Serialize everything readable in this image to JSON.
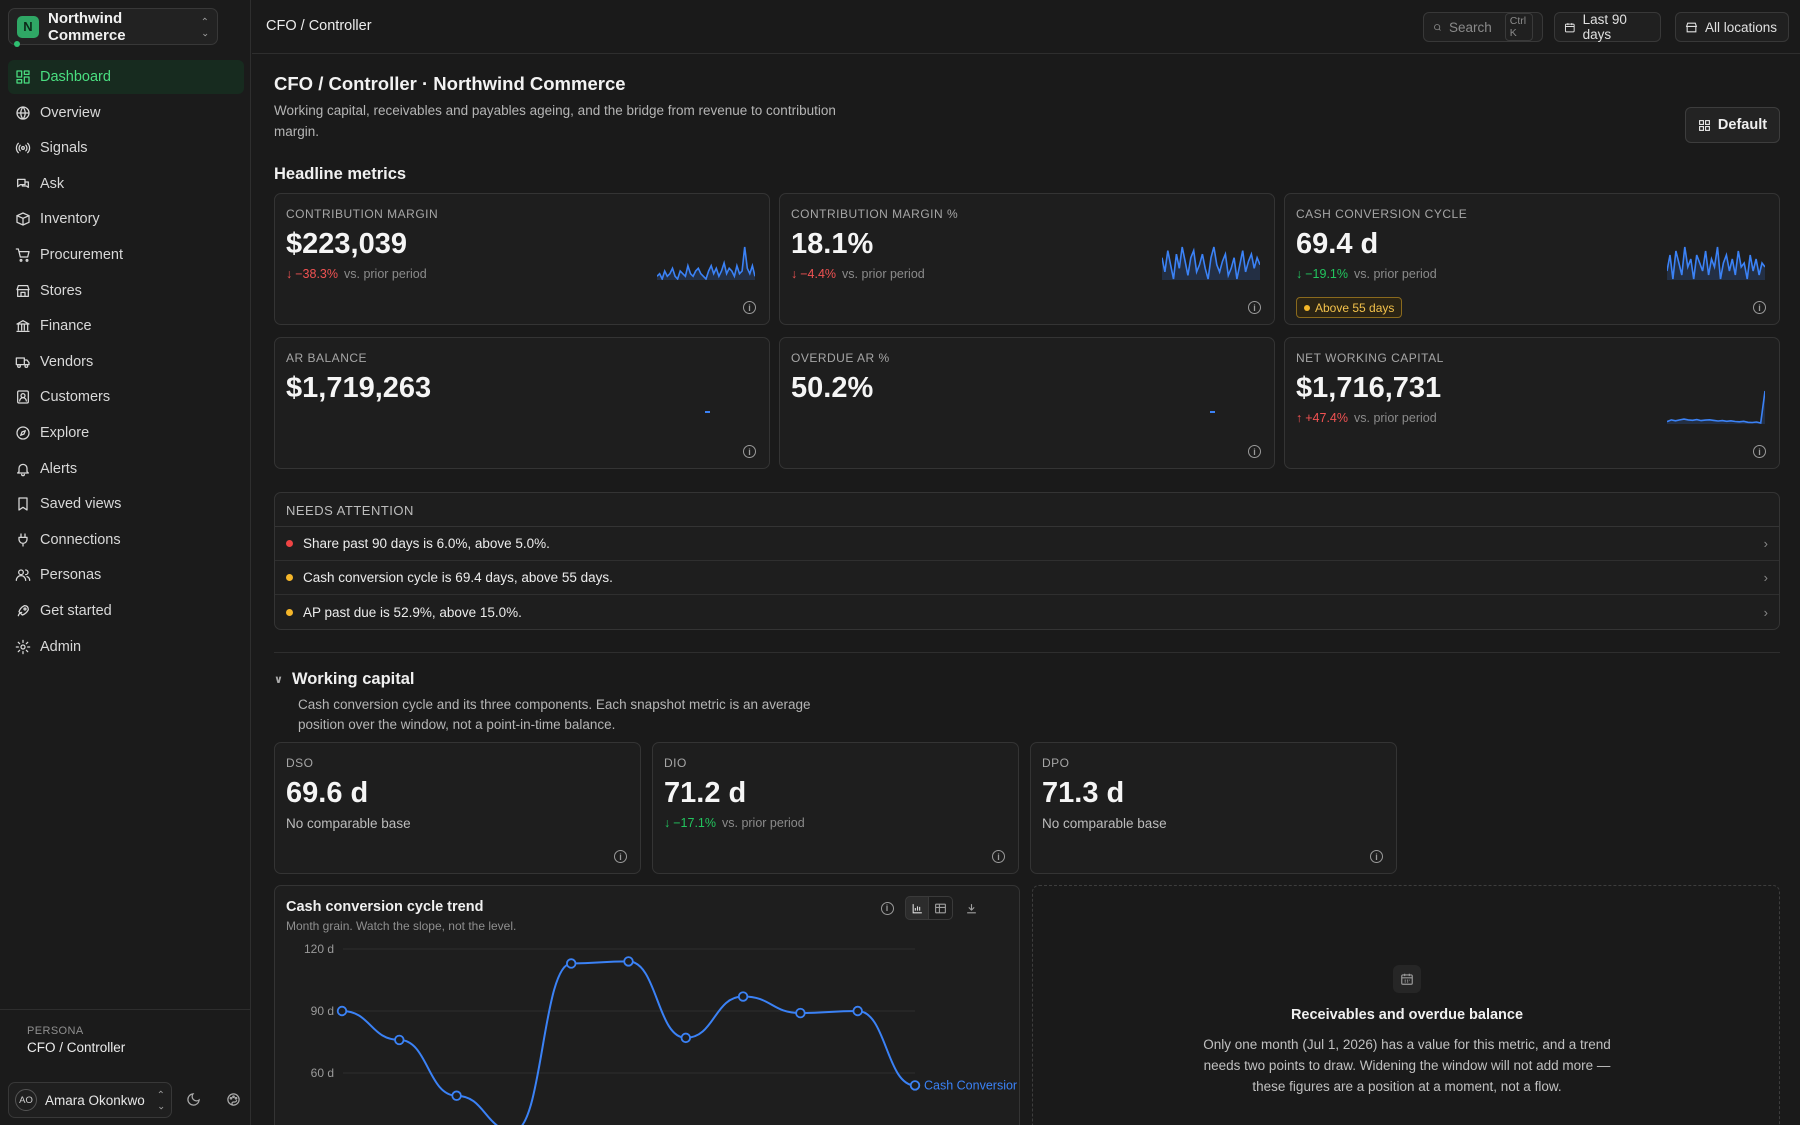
{
  "org": {
    "badge": "N",
    "name": "Northwind Commerce"
  },
  "nav": [
    {
      "label": "Dashboard",
      "icon": "dashboard-icon",
      "active": true
    },
    {
      "label": "Overview",
      "icon": "globe-icon"
    },
    {
      "label": "Signals",
      "icon": "signals-icon"
    },
    {
      "label": "Ask",
      "icon": "chat-icon"
    },
    {
      "label": "Inventory",
      "icon": "box-icon"
    },
    {
      "label": "Procurement",
      "icon": "cart-icon"
    },
    {
      "label": "Stores",
      "icon": "store-icon"
    },
    {
      "label": "Finance",
      "icon": "bank-icon"
    },
    {
      "label": "Vendors",
      "icon": "truck-icon"
    },
    {
      "label": "Customers",
      "icon": "contact-icon"
    },
    {
      "label": "Explore",
      "icon": "compass-icon"
    },
    {
      "label": "Alerts",
      "icon": "bell-icon"
    },
    {
      "label": "Saved views",
      "icon": "bookmark-icon"
    },
    {
      "label": "Connections",
      "icon": "plug-icon"
    },
    {
      "label": "Personas",
      "icon": "users-icon"
    },
    {
      "label": "Get started",
      "icon": "rocket-icon"
    },
    {
      "label": "Admin",
      "icon": "gear-icon"
    }
  ],
  "persona": {
    "label": "PERSONA",
    "name": "CFO / Controller"
  },
  "user": {
    "initials": "AO",
    "name": "Amara Okonkwo"
  },
  "topbar": {
    "breadcrumb": "CFO / Controller",
    "search_placeholder": "Search",
    "search_shortcut": "Ctrl K",
    "date_range": "Last 90 days",
    "location": "All locations"
  },
  "page": {
    "title": "CFO / Controller · Northwind Commerce",
    "description": "Working capital, receivables and payables ageing, and the bridge from revenue to contribution margin.",
    "layout_button": "Default"
  },
  "headline": {
    "title": "Headline metrics",
    "cards": [
      {
        "label": "Contribution margin",
        "value": "$223,039",
        "delta": "−38.3%",
        "delta_dir": "down",
        "delta_tone": "neg",
        "delta_suffix": "vs. prior period",
        "spark": [
          5,
          6,
          4,
          7,
          5,
          6,
          8,
          5,
          4,
          7,
          6,
          5,
          9,
          6,
          5,
          7,
          8,
          6,
          5,
          4,
          7,
          9,
          6,
          8,
          5,
          7,
          10,
          6,
          8,
          7,
          5,
          9,
          6,
          7,
          16,
          8,
          6,
          9,
          5
        ]
      },
      {
        "label": "Contribution margin %",
        "value": "18.1%",
        "delta": "−4.4%",
        "delta_dir": "down",
        "delta_tone": "neg",
        "delta_suffix": "vs. prior period",
        "spark": [
          12,
          8,
          14,
          10,
          6,
          13,
          9,
          15,
          11,
          7,
          12,
          14,
          8,
          10,
          13,
          9,
          6,
          12,
          15,
          10,
          8,
          11,
          13,
          7,
          9,
          12,
          6,
          10,
          14,
          8,
          11,
          13,
          9,
          12,
          10
        ]
      },
      {
        "label": "Cash conversion cycle",
        "value": "69.4 d",
        "delta": "−19.1%",
        "delta_dir": "down",
        "delta_tone": "pos",
        "delta_suffix": "vs. prior period",
        "badge": "Above 55 days",
        "spark": [
          10,
          14,
          8,
          15,
          12,
          9,
          16,
          11,
          13,
          8,
          14,
          12,
          10,
          15,
          9,
          13,
          11,
          16,
          8,
          12,
          14,
          10,
          13,
          9,
          15,
          11,
          12,
          8,
          14,
          10,
          13,
          9,
          12,
          11
        ]
      },
      {
        "label": "AR balance",
        "value": "$1,719,263",
        "spark_dot": true
      },
      {
        "label": "Overdue AR %",
        "value": "50.2%",
        "spark_dot": true
      },
      {
        "label": "Net working capital",
        "value": "$1,716,731",
        "delta": "+47.4%",
        "delta_dir": "up",
        "delta_tone": "neg",
        "delta_suffix": "vs. prior period",
        "spark": [
          8,
          9,
          8.5,
          9,
          9.5,
          9,
          8.8,
          9.2,
          8.6,
          8.9,
          9.1,
          8.7,
          8.4,
          8.6,
          8.2,
          8.5,
          8.1,
          7.9,
          8.2,
          7.6,
          7.5,
          7.8,
          7.2,
          26
        ]
      }
    ]
  },
  "attention": {
    "title": "NEEDS ATTENTION",
    "items": [
      {
        "text": "Share past 90 days is 6.0%, above 5.0%.",
        "color": "#ef4444"
      },
      {
        "text": "Cash conversion cycle is 69.4 days, above 55 days.",
        "color": "#f5b62a"
      },
      {
        "text": "AP past due is 52.9%, above 15.0%.",
        "color": "#f5b62a"
      }
    ]
  },
  "working_capital": {
    "title": "Working capital",
    "description": "Cash conversion cycle and its three components. Each snapshot metric is an average position over the window, not a point-in-time balance.",
    "cards": [
      {
        "label": "DSO",
        "value": "69.6 d",
        "note": "No comparable base"
      },
      {
        "label": "DIO",
        "value": "71.2 d",
        "delta": "−17.1%",
        "delta_tone": "pos",
        "delta_suffix": "vs. prior period"
      },
      {
        "label": "DPO",
        "value": "71.3 d",
        "note": "No comparable base"
      }
    ]
  },
  "ccc_chart": {
    "title": "Cash conversion cycle trend",
    "subtitle": "Month grain. Watch the slope, not the level.",
    "series_label": "Cash Conversior"
  },
  "chart_data": {
    "type": "line",
    "title": "Cash conversion cycle trend",
    "xlabel": "",
    "ylabel": "",
    "ylim": [
      30,
      120
    ],
    "yticks": [
      "120 d",
      "90 d",
      "60 d"
    ],
    "grid": true,
    "legend": "inline-right",
    "series": [
      {
        "name": "Cash Conversior",
        "color": "#3b82f6",
        "values": [
          90,
          76,
          49,
          32,
          113,
          114,
          77,
          97,
          89,
          90,
          54
        ]
      }
    ]
  },
  "empty_state": {
    "icon": "calendar-icon",
    "title": "Receivables and overdue balance",
    "body": "Only one month (Jul 1, 2026) has a value for this metric, and a trend needs two points to draw. Widening the window will not add more — these figures are a position at a moment, not a flow."
  },
  "colors": {
    "accent": "#4ade80",
    "series": "#3b82f6",
    "negative": "#f05252",
    "positive": "#22c55e",
    "warning": "#f5b62a"
  }
}
